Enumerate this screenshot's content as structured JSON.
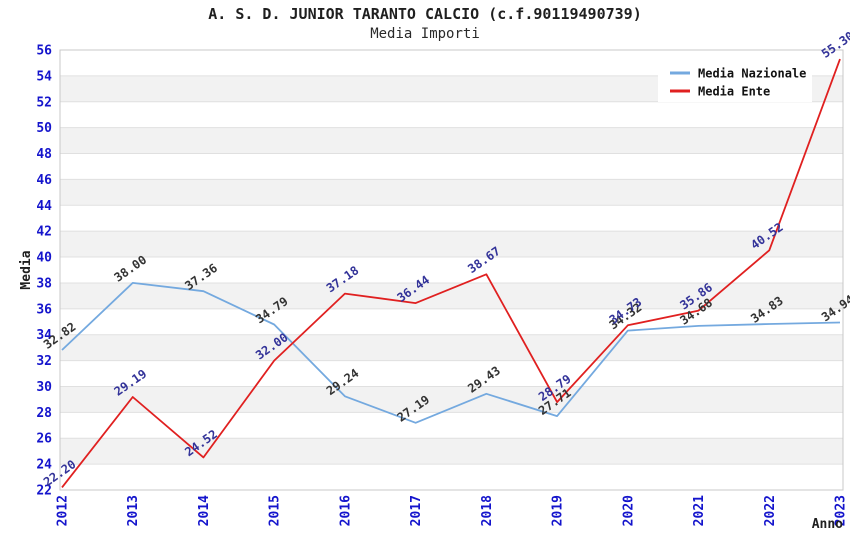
{
  "header": {
    "title": "A. S. D. JUNIOR TARANTO CALCIO (c.f.90119490739)",
    "subtitle": "Media Importi"
  },
  "chart_data": {
    "type": "line",
    "title": "A. S. D. JUNIOR TARANTO CALCIO (c.f.90119490739)",
    "subtitle": "Media Importi",
    "xlabel": "Anno",
    "ylabel": "Media",
    "ylim": [
      22,
      56
    ],
    "y_ticks": [
      22,
      24,
      26,
      28,
      30,
      32,
      34,
      36,
      38,
      40,
      42,
      44,
      46,
      48,
      50,
      52,
      54,
      56
    ],
    "categories": [
      "2012",
      "2013",
      "2014",
      "2015",
      "2016",
      "2017",
      "2018",
      "2019",
      "2020",
      "2021",
      "2022",
      "2023"
    ],
    "series": [
      {
        "name": "Media Nazionale",
        "color": "#74a9df",
        "label_color": "#333333",
        "values": [
          32.82,
          38.0,
          37.36,
          34.79,
          29.24,
          27.19,
          29.43,
          27.71,
          34.32,
          34.68,
          34.83,
          34.94
        ]
      },
      {
        "name": "Media Ente",
        "color": "#e02020",
        "label_color": "#333399",
        "values": [
          22.2,
          29.19,
          24.52,
          32.0,
          37.18,
          36.44,
          38.67,
          28.79,
          34.73,
          35.86,
          40.52,
          55.3
        ]
      }
    ],
    "legend_position": "top-right",
    "grid": "horizontal-bands"
  },
  "colors": {
    "tick_label": "#1414cc",
    "band_fill": "#f2f2f2",
    "gridline": "#e0e0e0",
    "plot_border": "#c8c8c8",
    "axis_title": "#1f1f1f",
    "legend_text": "#111111",
    "legend_bg": "#ffffff"
  }
}
